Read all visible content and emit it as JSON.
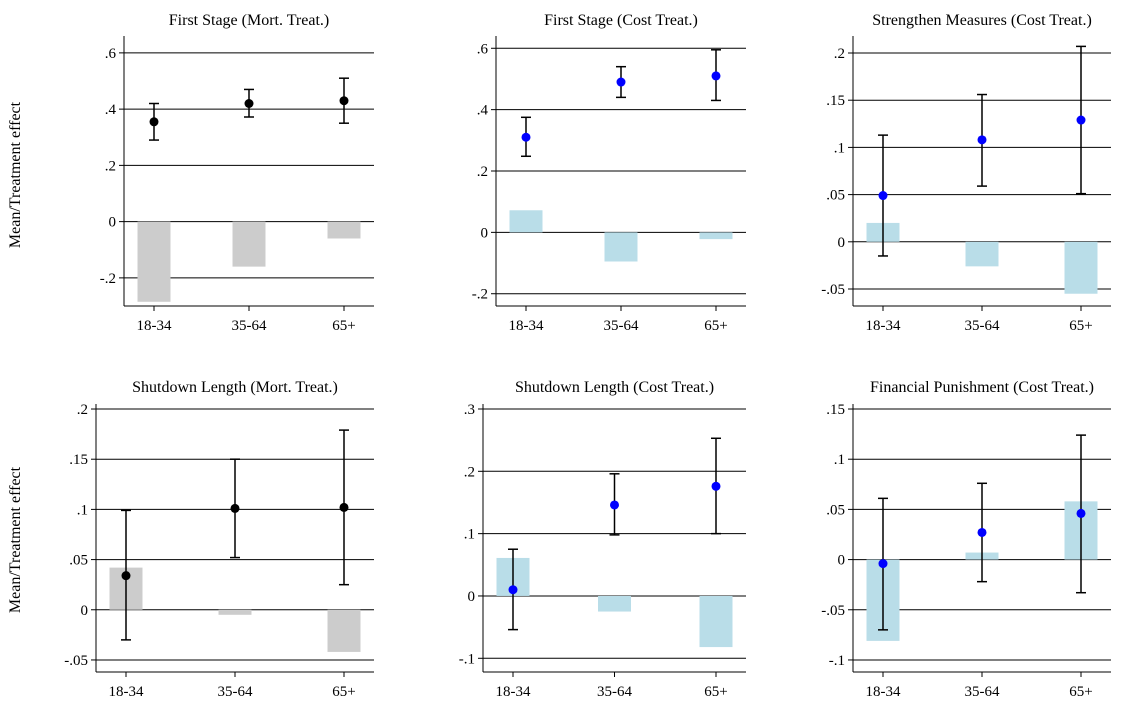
{
  "ylabel": "Mean/Treatment effect",
  "chart_data": [
    {
      "type": "bar",
      "title": "First Stage (Mort. Treat.)",
      "categories": [
        "18-34",
        "35-64",
        "65+"
      ],
      "yticks": [
        -0.2,
        0,
        0.2,
        0.4,
        0.6
      ],
      "ytick_labels": [
        "-.2",
        "0",
        ".2",
        ".4",
        ".6"
      ],
      "ylim": [
        -0.3,
        0.66
      ],
      "grid": true,
      "series": [
        {
          "type": "bar",
          "values": [
            -0.285,
            -0.16,
            -0.06
          ]
        },
        {
          "type": "scatter-errorbar",
          "values": [
            0.355,
            0.42,
            0.43
          ],
          "lower": [
            0.29,
            0.372,
            0.35
          ],
          "upper": [
            0.42,
            0.47,
            0.51
          ]
        }
      ],
      "colors": {
        "bar": "#cccccc",
        "point": "#000000"
      }
    },
    {
      "type": "bar",
      "title": "First Stage (Cost Treat.)",
      "categories": [
        "18-34",
        "35-64",
        "65+"
      ],
      "yticks": [
        -0.2,
        0,
        0.2,
        0.4,
        0.6
      ],
      "ytick_labels": [
        "-.2",
        "0",
        ".2",
        ".4",
        ".6"
      ],
      "ylim": [
        -0.24,
        0.64
      ],
      "grid": true,
      "series": [
        {
          "type": "bar",
          "values": [
            0.072,
            -0.095,
            -0.022
          ]
        },
        {
          "type": "scatter-errorbar",
          "values": [
            0.31,
            0.49,
            0.51
          ],
          "lower": [
            0.248,
            0.44,
            0.43
          ],
          "upper": [
            0.375,
            0.54,
            0.595
          ]
        }
      ],
      "colors": {
        "bar": "#b9dde8",
        "point": "#0000ff"
      }
    },
    {
      "type": "bar",
      "title": "Strengthen Measures (Cost Treat.)",
      "categories": [
        "18-34",
        "35-64",
        "65+"
      ],
      "yticks": [
        -0.05,
        0,
        0.05,
        0.1,
        0.15,
        0.2
      ],
      "ytick_labels": [
        "-.05",
        "0",
        ".05",
        ".1",
        ".15",
        ".2"
      ],
      "ylim": [
        -0.068,
        0.218
      ],
      "grid": true,
      "series": [
        {
          "type": "bar",
          "values": [
            0.02,
            -0.026,
            -0.055
          ]
        },
        {
          "type": "scatter-errorbar",
          "values": [
            0.049,
            0.108,
            0.129
          ],
          "lower": [
            -0.015,
            0.059,
            0.051
          ],
          "upper": [
            0.113,
            0.156,
            0.207
          ]
        }
      ],
      "colors": {
        "bar": "#b9dde8",
        "point": "#0000ff"
      }
    },
    {
      "type": "bar",
      "title": "Shutdown Length (Mort. Treat.)",
      "categories": [
        "18-34",
        "35-64",
        "65+"
      ],
      "yticks": [
        -0.05,
        0,
        0.05,
        0.1,
        0.15,
        0.2
      ],
      "ytick_labels": [
        "-.05",
        "0",
        ".05",
        ".1",
        ".15",
        ".2"
      ],
      "ylim": [
        -0.062,
        0.205
      ],
      "grid": true,
      "series": [
        {
          "type": "bar",
          "values": [
            0.042,
            -0.005,
            -0.042
          ]
        },
        {
          "type": "scatter-errorbar",
          "values": [
            0.034,
            0.101,
            0.102
          ],
          "lower": [
            -0.03,
            0.052,
            0.025
          ],
          "upper": [
            0.099,
            0.15,
            0.179
          ]
        }
      ],
      "colors": {
        "bar": "#cccccc",
        "point": "#000000"
      }
    },
    {
      "type": "bar",
      "title": "Shutdown Length (Cost Treat.)",
      "categories": [
        "18-34",
        "35-64",
        "65+"
      ],
      "yticks": [
        -0.1,
        0,
        0.1,
        0.2,
        0.3
      ],
      "ytick_labels": [
        "-.1",
        "0",
        ".1",
        ".2",
        ".3"
      ],
      "ylim": [
        -0.122,
        0.308
      ],
      "grid": true,
      "series": [
        {
          "type": "bar",
          "values": [
            0.061,
            -0.025,
            -0.082
          ]
        },
        {
          "type": "scatter-errorbar",
          "values": [
            0.01,
            0.146,
            0.176
          ],
          "lower": [
            -0.054,
            0.098,
            0.1
          ],
          "upper": [
            0.075,
            0.196,
            0.253
          ]
        }
      ],
      "colors": {
        "bar": "#b9dde8",
        "point": "#0000ff"
      }
    },
    {
      "type": "bar",
      "title": "Financial Punishment (Cost Treat.)",
      "categories": [
        "18-34",
        "35-64",
        "65+"
      ],
      "yticks": [
        -0.1,
        -0.05,
        0,
        0.05,
        0.1,
        0.15
      ],
      "ytick_labels": [
        "-.1",
        "-.05",
        "0",
        ".05",
        ".1",
        ".15"
      ],
      "ylim": [
        -0.112,
        0.155
      ],
      "grid": true,
      "series": [
        {
          "type": "bar",
          "values": [
            -0.081,
            0.007,
            0.058
          ]
        },
        {
          "type": "scatter-errorbar",
          "values": [
            -0.004,
            0.027,
            0.046
          ],
          "lower": [
            -0.07,
            -0.022,
            -0.033
          ],
          "upper": [
            0.061,
            0.076,
            0.124
          ]
        }
      ],
      "colors": {
        "bar": "#b9dde8",
        "point": "#0000ff"
      }
    }
  ]
}
